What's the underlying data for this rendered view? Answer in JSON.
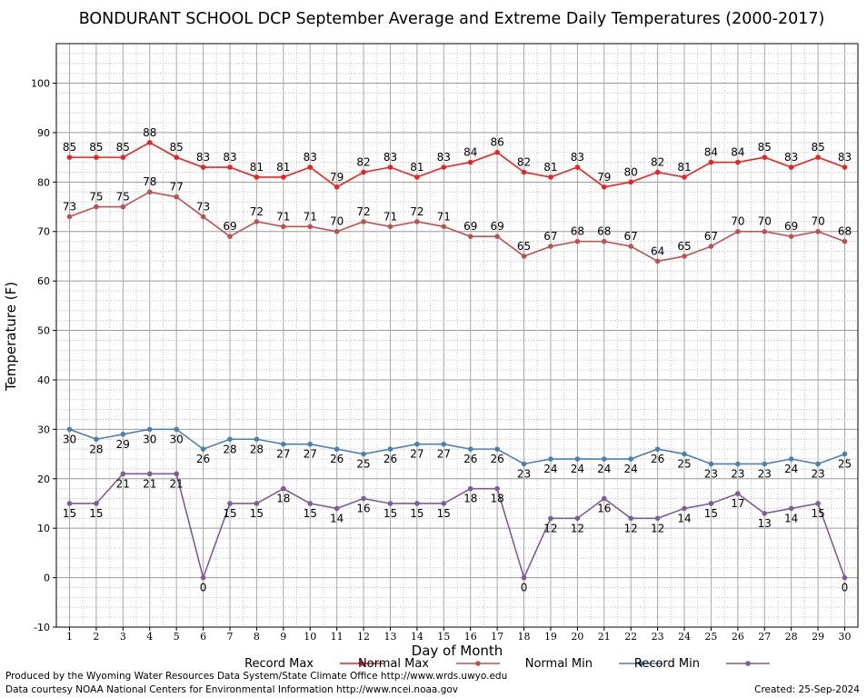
{
  "chart_data": {
    "type": "line",
    "title": "BONDURANT SCHOOL DCP September Average and Extreme Daily Temperatures (2000-2017)",
    "xlabel": "Day of Month",
    "ylabel": "Temperature (F)",
    "xlim": [
      0.5,
      30.5
    ],
    "ylim": [
      -10,
      108
    ],
    "x_ticks": [
      1,
      2,
      3,
      4,
      5,
      6,
      7,
      8,
      9,
      10,
      11,
      12,
      13,
      14,
      15,
      16,
      17,
      18,
      19,
      20,
      21,
      22,
      23,
      24,
      25,
      26,
      27,
      28,
      29,
      30
    ],
    "y_ticks": [
      -10,
      0,
      10,
      20,
      30,
      40,
      50,
      60,
      70,
      80,
      90,
      100
    ],
    "grid": true,
    "legend_position": "bottom",
    "x": [
      1,
      2,
      3,
      4,
      5,
      6,
      7,
      8,
      9,
      10,
      11,
      12,
      13,
      14,
      15,
      16,
      17,
      18,
      19,
      20,
      21,
      22,
      23,
      24,
      25,
      26,
      27,
      28,
      29,
      30
    ],
    "series": [
      {
        "name": "Record Max",
        "color": "#ee2020",
        "label_position": "above",
        "values": [
          85,
          85,
          85,
          88,
          85,
          83,
          83,
          81,
          81,
          83,
          79,
          82,
          83,
          81,
          83,
          84,
          86,
          82,
          81,
          83,
          79,
          80,
          82,
          81,
          84,
          84,
          85,
          83,
          85,
          83
        ]
      },
      {
        "name": "Normal Max",
        "color": "#c05050",
        "label_position": "above",
        "values": [
          73,
          75,
          75,
          78,
          77,
          73,
          69,
          72,
          71,
          71,
          70,
          72,
          71,
          72,
          71,
          69,
          69,
          65,
          67,
          68,
          68,
          67,
          64,
          65,
          67,
          70,
          70,
          69,
          70,
          68
        ]
      },
      {
        "name": "Normal Min",
        "color": "#4a7fb5",
        "label_position": "below",
        "values": [
          30,
          28,
          29,
          30,
          30,
          26,
          28,
          28,
          27,
          27,
          26,
          25,
          26,
          27,
          27,
          26,
          26,
          23,
          24,
          24,
          24,
          24,
          26,
          25,
          23,
          23,
          23,
          24,
          23,
          25
        ]
      },
      {
        "name": "Record Min",
        "color": "#7f5a9c",
        "label_position": "below",
        "values": [
          15,
          15,
          21,
          21,
          21,
          0,
          15,
          15,
          18,
          15,
          14,
          16,
          15,
          15,
          15,
          18,
          18,
          0,
          12,
          12,
          16,
          12,
          12,
          14,
          15,
          17,
          13,
          14,
          15,
          0
        ]
      }
    ]
  },
  "footer": {
    "produced_by": "Produced by the Wyoming Water Resources Data System/State Climate Office http://www.wrds.uwyo.edu",
    "courtesy": "Data courtesy NOAA National Centers for Environmental Information http://www.ncei.noaa.gov",
    "created": "Created:  25-Sep-2024"
  }
}
